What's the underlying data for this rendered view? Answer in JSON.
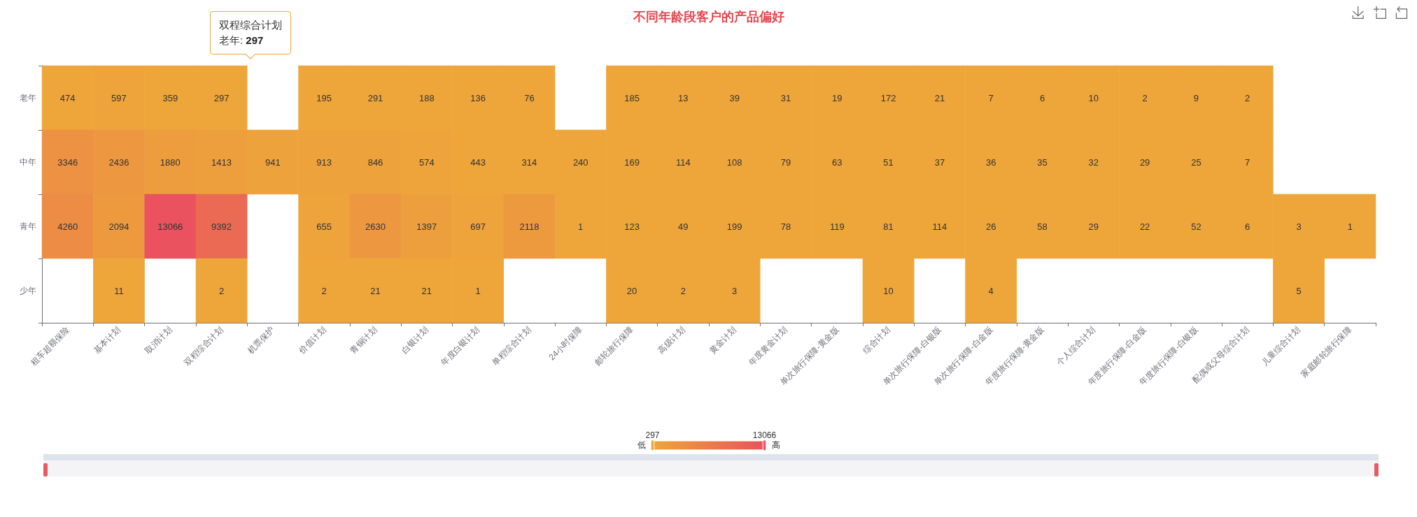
{
  "chart_data": {
    "type": "heatmap",
    "title": "不同年龄段客户的产品偏好",
    "categories": [
      "租车超额保险",
      "基本计划",
      "取消计划",
      "双程综合计划",
      "机票保护",
      "价值计划",
      "青铜计划",
      "白银计划",
      "年度白银计划",
      "单程综合计划",
      "24小时保障",
      "邮轮旅行保障",
      "高级计划",
      "黄金计划",
      "年度黄金计划",
      "单次旅行保障-黄金版",
      "综合计划",
      "单次旅行保障-白银版",
      "单次旅行保障-白金版",
      "年度旅行保障-黄金版",
      "个人综合计划",
      "年度旅行保障-白金版",
      "年度旅行保障-白银版",
      "配偶或父母综合计划",
      "儿童综合计划",
      "家庭邮轮旅行保障"
    ],
    "y_categories": [
      "老年",
      "中年",
      "青年",
      "少年"
    ],
    "cells": [
      [
        474,
        597,
        359,
        297,
        null,
        195,
        291,
        188,
        136,
        76,
        null,
        185,
        13,
        39,
        31,
        19,
        172,
        21,
        7,
        6,
        10,
        2,
        9,
        2,
        null,
        null
      ],
      [
        3346,
        2436,
        1880,
        1413,
        941,
        913,
        846,
        574,
        443,
        314,
        240,
        169,
        114,
        108,
        79,
        63,
        51,
        37,
        36,
        35,
        32,
        29,
        25,
        7,
        null,
        null
      ],
      [
        4260,
        2094,
        13066,
        9392,
        null,
        655,
        2630,
        1397,
        697,
        2118,
        1,
        123,
        49,
        199,
        78,
        119,
        81,
        114,
        26,
        58,
        29,
        22,
        52,
        6,
        3,
        1
      ],
      [
        null,
        11,
        null,
        2,
        null,
        2,
        21,
        21,
        1,
        null,
        null,
        20,
        2,
        3,
        null,
        null,
        10,
        null,
        4,
        null,
        null,
        null,
        null,
        null,
        5,
        null
      ]
    ],
    "clim": [
      297,
      13066
    ],
    "cticks": [
      297,
      13066
    ],
    "data_labels": true,
    "annotations": [
      "低",
      "高",
      "双程综合计划",
      "老年: 297"
    ]
  }
}
